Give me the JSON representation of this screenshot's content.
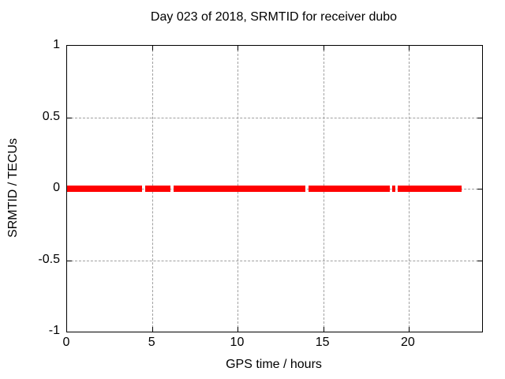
{
  "chart_data": {
    "type": "line",
    "title": "Day 023 of 2018, SRMTID for receiver dubo",
    "xlabel": "GPS time / hours",
    "ylabel": "SRMTID / TECUs",
    "xlim": [
      0,
      24.3
    ],
    "ylim": [
      -1,
      1
    ],
    "grid": true,
    "legend": "none",
    "x_ticks": [
      {
        "value": 0,
        "label": "0"
      },
      {
        "value": 5,
        "label": "5"
      },
      {
        "value": 10,
        "label": "10"
      },
      {
        "value": 15,
        "label": "15"
      },
      {
        "value": 20,
        "label": "20"
      }
    ],
    "y_ticks": [
      {
        "value": 1,
        "label": "1"
      },
      {
        "value": 0.5,
        "label": "0.5"
      },
      {
        "value": 0,
        "label": "0"
      },
      {
        "value": -0.5,
        "label": "-0.5"
      },
      {
        "value": -1,
        "label": "-1"
      }
    ],
    "series": [
      {
        "name": "SRMTID",
        "y": 0,
        "color": "#ff0000",
        "segments": [
          [
            0.0,
            4.39
          ],
          [
            4.57,
            6.05
          ],
          [
            6.24,
            13.96
          ],
          [
            14.14,
            18.9
          ],
          [
            19.04,
            19.22
          ],
          [
            19.36,
            23.1
          ]
        ]
      }
    ],
    "colors": {
      "line": "#ff0000",
      "grid": "#a0a0a0",
      "axis": "#000000",
      "background": "#ffffff"
    }
  }
}
